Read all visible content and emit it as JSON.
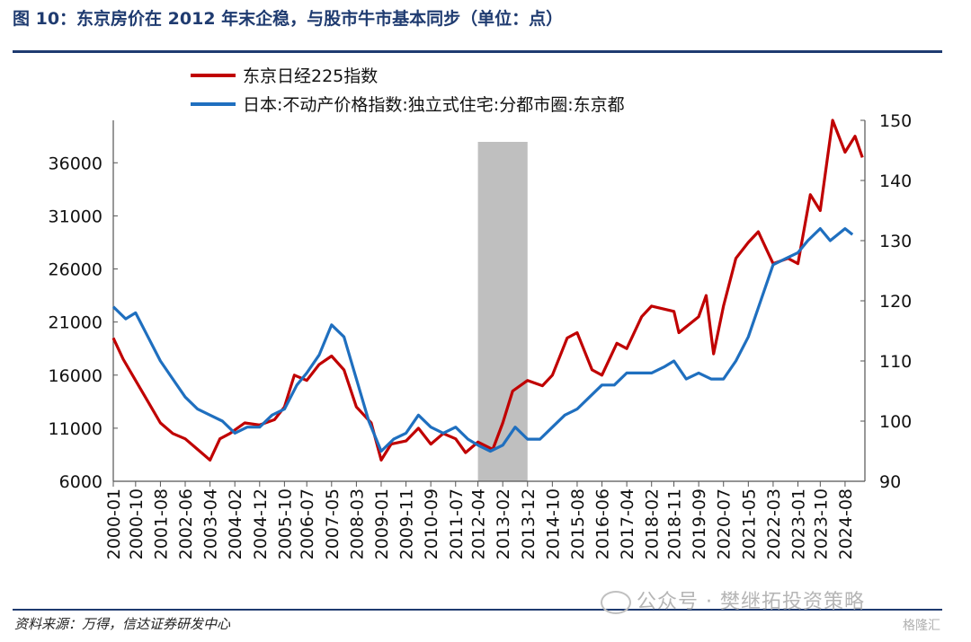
{
  "header": {
    "title": "图 10：东京房价在 2012 年末企稳，与股市牛市基本同步（单位：点）"
  },
  "footer": {
    "source": "资料来源：万得，信达证券研发中心",
    "watermark": "公众号 · 樊继拓投资策略",
    "corner_mark": "格隆汇"
  },
  "chart_data": {
    "type": "line",
    "title": "",
    "xlabel": "",
    "x_tick_labels": [
      "2000-01",
      "2000-10",
      "2001-08",
      "2002-06",
      "2003-04",
      "2004-02",
      "2004-12",
      "2005-10",
      "2006-07",
      "2007-05",
      "2008-03",
      "2009-01",
      "2009-11",
      "2010-09",
      "2011-07",
      "2012-04",
      "2013-02",
      "2013-12",
      "2014-10",
      "2015-08",
      "2016-06",
      "2017-04",
      "2018-02",
      "2018-11",
      "2019-09",
      "2020-07",
      "2021-05",
      "2022-03",
      "2023-01",
      "2023-10",
      "2024-08"
    ],
    "y_left": {
      "min": 6000,
      "max": 40000,
      "ticks": [
        6000,
        11000,
        16000,
        21000,
        26000,
        31000,
        36000
      ]
    },
    "y_right": {
      "min": 90,
      "max": 150,
      "ticks": [
        90,
        100,
        110,
        120,
        130,
        140,
        150
      ]
    },
    "legend_position": "top",
    "shaded_period": {
      "start": "2012-04",
      "end": "2013-12",
      "color": "#bfbfbf"
    },
    "series": [
      {
        "name": "东京日经225指数",
        "axis": "left",
        "color": "#c00000",
        "points": [
          [
            "2000-01",
            19500
          ],
          [
            "2000-05",
            17500
          ],
          [
            "2000-10",
            15500
          ],
          [
            "2001-03",
            13500
          ],
          [
            "2001-08",
            11500
          ],
          [
            "2002-01",
            10500
          ],
          [
            "2002-06",
            10000
          ],
          [
            "2002-11",
            9000
          ],
          [
            "2003-04",
            8000
          ],
          [
            "2003-08",
            10000
          ],
          [
            "2003-12",
            10500
          ],
          [
            "2004-06",
            11500
          ],
          [
            "2004-12",
            11300
          ],
          [
            "2005-06",
            11800
          ],
          [
            "2005-10",
            13000
          ],
          [
            "2006-02",
            16000
          ],
          [
            "2006-07",
            15500
          ],
          [
            "2006-12",
            17000
          ],
          [
            "2007-05",
            17800
          ],
          [
            "2007-10",
            16500
          ],
          [
            "2008-03",
            13000
          ],
          [
            "2008-09",
            11500
          ],
          [
            "2009-01",
            8000
          ],
          [
            "2009-05",
            9500
          ],
          [
            "2009-11",
            9800
          ],
          [
            "2010-04",
            11000
          ],
          [
            "2010-09",
            9500
          ],
          [
            "2011-02",
            10500
          ],
          [
            "2011-07",
            10000
          ],
          [
            "2011-11",
            8700
          ],
          [
            "2012-04",
            9700
          ],
          [
            "2012-10",
            9000
          ],
          [
            "2013-02",
            11500
          ],
          [
            "2013-06",
            14500
          ],
          [
            "2013-12",
            15500
          ],
          [
            "2014-06",
            15000
          ],
          [
            "2014-10",
            16000
          ],
          [
            "2015-04",
            19500
          ],
          [
            "2015-08",
            20000
          ],
          [
            "2016-02",
            16500
          ],
          [
            "2016-06",
            16000
          ],
          [
            "2016-12",
            19000
          ],
          [
            "2017-04",
            18500
          ],
          [
            "2017-10",
            21500
          ],
          [
            "2018-02",
            22500
          ],
          [
            "2018-11",
            22000
          ],
          [
            "2019-01",
            20000
          ],
          [
            "2019-09",
            21500
          ],
          [
            "2019-12",
            23500
          ],
          [
            "2020-03",
            18000
          ],
          [
            "2020-07",
            22500
          ],
          [
            "2020-12",
            27000
          ],
          [
            "2021-05",
            28500
          ],
          [
            "2021-09",
            29500
          ],
          [
            "2022-03",
            26500
          ],
          [
            "2022-09",
            27000
          ],
          [
            "2023-01",
            26500
          ],
          [
            "2023-06",
            33000
          ],
          [
            "2023-10",
            31500
          ],
          [
            "2024-03",
            40000
          ],
          [
            "2024-08",
            37000
          ],
          [
            "2024-12",
            38500
          ],
          [
            "2025-03",
            36500
          ]
        ]
      },
      {
        "name": "日本:不动产价格指数:独立式住宅:分都市圈:东京都",
        "axis": "right",
        "color": "#1f6fbf",
        "points": [
          [
            "2000-01",
            119
          ],
          [
            "2000-06",
            117
          ],
          [
            "2000-10",
            118
          ],
          [
            "2001-03",
            114
          ],
          [
            "2001-08",
            110
          ],
          [
            "2002-01",
            107
          ],
          [
            "2002-06",
            104
          ],
          [
            "2002-11",
            102
          ],
          [
            "2003-04",
            101
          ],
          [
            "2003-09",
            100
          ],
          [
            "2004-02",
            98
          ],
          [
            "2004-07",
            99
          ],
          [
            "2004-12",
            99
          ],
          [
            "2005-05",
            101
          ],
          [
            "2005-10",
            102
          ],
          [
            "2006-03",
            106
          ],
          [
            "2006-07",
            108
          ],
          [
            "2006-12",
            111
          ],
          [
            "2007-05",
            116
          ],
          [
            "2007-10",
            114
          ],
          [
            "2008-03",
            107
          ],
          [
            "2008-08",
            100
          ],
          [
            "2009-01",
            95
          ],
          [
            "2009-06",
            97
          ],
          [
            "2009-11",
            98
          ],
          [
            "2010-04",
            101
          ],
          [
            "2010-09",
            99
          ],
          [
            "2011-02",
            98
          ],
          [
            "2011-07",
            99
          ],
          [
            "2011-12",
            97
          ],
          [
            "2012-04",
            96
          ],
          [
            "2012-09",
            95
          ],
          [
            "2013-02",
            96
          ],
          [
            "2013-07",
            99
          ],
          [
            "2013-12",
            97
          ],
          [
            "2014-05",
            97
          ],
          [
            "2014-10",
            99
          ],
          [
            "2015-03",
            101
          ],
          [
            "2015-08",
            102
          ],
          [
            "2016-01",
            104
          ],
          [
            "2016-06",
            106
          ],
          [
            "2016-11",
            106
          ],
          [
            "2017-04",
            108
          ],
          [
            "2017-09",
            108
          ],
          [
            "2018-02",
            108
          ],
          [
            "2018-07",
            109
          ],
          [
            "2018-11",
            110
          ],
          [
            "2019-04",
            107
          ],
          [
            "2019-09",
            108
          ],
          [
            "2020-02",
            107
          ],
          [
            "2020-07",
            107
          ],
          [
            "2020-12",
            110
          ],
          [
            "2021-05",
            114
          ],
          [
            "2021-10",
            120
          ],
          [
            "2022-03",
            126
          ],
          [
            "2022-08",
            127
          ],
          [
            "2023-01",
            128
          ],
          [
            "2023-05",
            130
          ],
          [
            "2023-10",
            132
          ],
          [
            "2024-02",
            130
          ],
          [
            "2024-08",
            132
          ],
          [
            "2024-11",
            131
          ]
        ]
      }
    ]
  }
}
